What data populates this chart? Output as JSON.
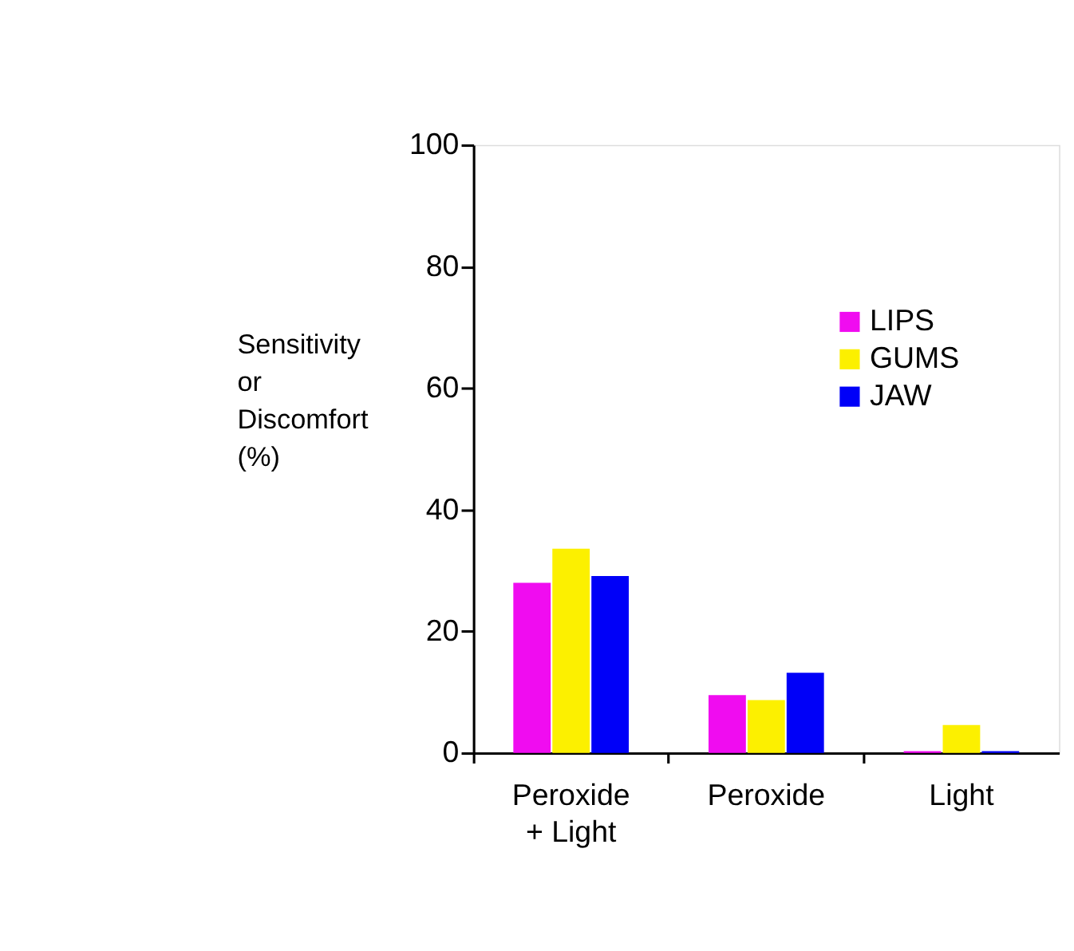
{
  "chart_data": {
    "type": "bar",
    "ylabel": "Sensitivity or Discomfort (%)",
    "categories": [
      "Peroxide + Light",
      "Peroxide",
      "Light"
    ],
    "series": [
      {
        "name": "LIPS",
        "color": "#f00cf0",
        "values": [
          28,
          9.5,
          0.3
        ]
      },
      {
        "name": "GUMS",
        "color": "#fcf000",
        "values": [
          33.6,
          8.7,
          4.6
        ]
      },
      {
        "name": "JAW",
        "color": "#0000f8",
        "values": [
          29.1,
          13.2,
          0.3
        ]
      }
    ],
    "ylim": [
      0,
      100
    ],
    "yticks": [
      0,
      20,
      40,
      60,
      80,
      100
    ],
    "grid": false,
    "legend": "top right"
  }
}
